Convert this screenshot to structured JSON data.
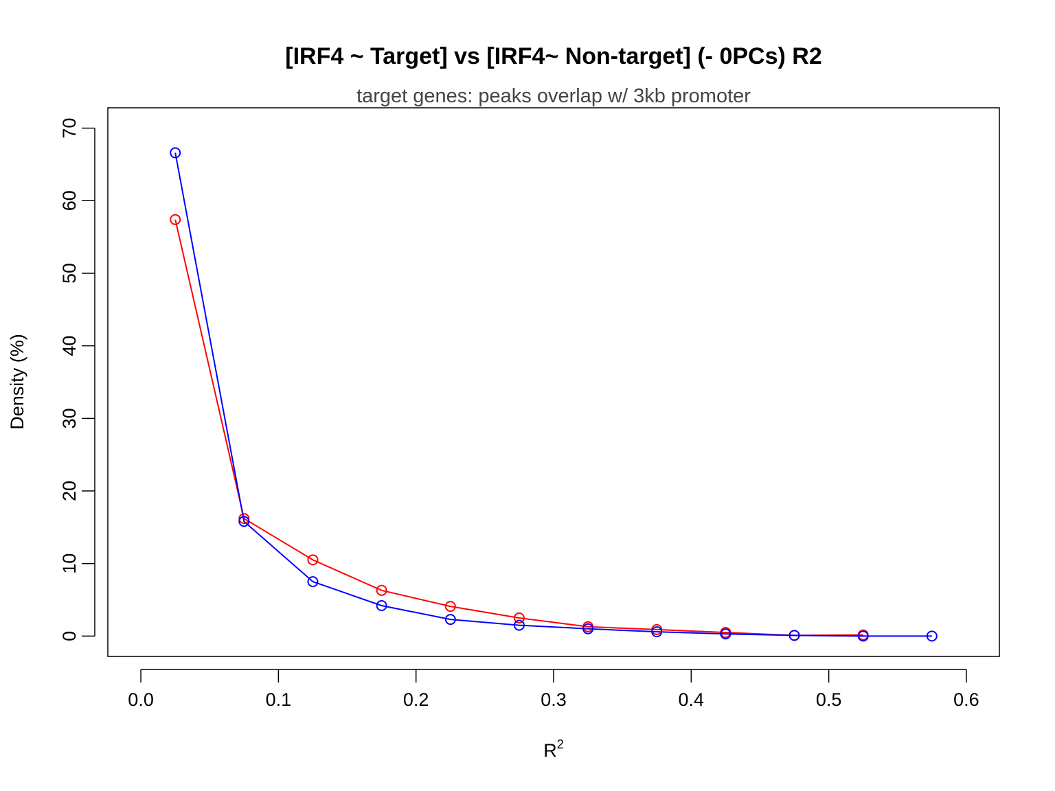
{
  "chart_data": {
    "type": "line",
    "title": "[IRF4 ~ Target] vs [IRF4~ Non-target] (- 0PCs) R2",
    "subtitle": "target genes: peaks overlap w/ 3kb promoter",
    "xlabel": {
      "base": "R",
      "superscript": "2"
    },
    "ylabel": "Density (%)",
    "xlim": [
      -0.024,
      0.624
    ],
    "ylim": [
      -2.8,
      72.8
    ],
    "xticks": [
      0.0,
      0.1,
      0.2,
      0.3,
      0.4,
      0.5,
      0.6
    ],
    "xtick_labels": [
      "0.0",
      "0.1",
      "0.2",
      "0.3",
      "0.4",
      "0.5",
      "0.6"
    ],
    "yticks": [
      0,
      10,
      20,
      30,
      40,
      50,
      60,
      70
    ],
    "ytick_labels": [
      "0",
      "10",
      "20",
      "30",
      "40",
      "50",
      "60",
      "70"
    ],
    "grid": false,
    "series": [
      {
        "color": "#ff0000",
        "x": [
          0.025,
          0.075,
          0.125,
          0.175,
          0.225,
          0.275,
          0.325,
          0.375,
          0.425,
          0.475,
          0.525
        ],
        "y": [
          57.4,
          16.2,
          10.5,
          6.3,
          4.1,
          2.5,
          1.3,
          0.9,
          0.5,
          0.1,
          0.15
        ]
      },
      {
        "color": "#0000ff",
        "x": [
          0.025,
          0.075,
          0.125,
          0.175,
          0.225,
          0.275,
          0.325,
          0.375,
          0.425,
          0.475,
          0.525,
          0.575
        ],
        "y": [
          66.6,
          15.8,
          7.5,
          4.2,
          2.3,
          1.5,
          1.0,
          0.6,
          0.3,
          0.1,
          0.0,
          0.0
        ]
      }
    ]
  }
}
